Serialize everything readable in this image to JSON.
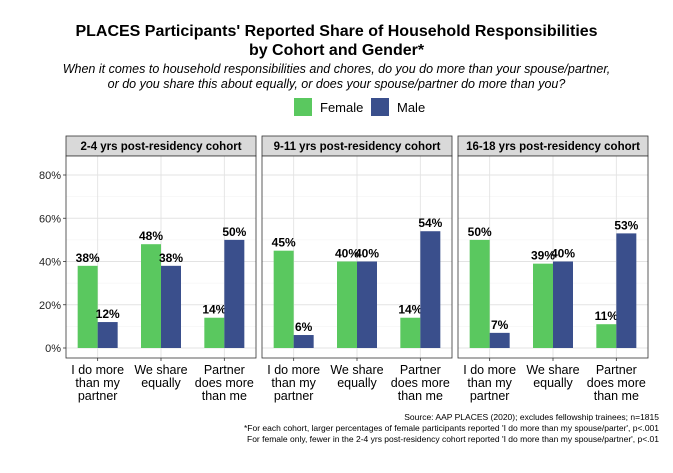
{
  "title_line1": "PLACES Participants' Reported Share of Household Responsibilities",
  "title_line2": "by Cohort and Gender*",
  "subtitle_line1": "When it comes to household responsibilities and chores, do you do more than your spouse/partner,",
  "subtitle_line2": "or do you share this about equally, or does your spouse/partner do more than you?",
  "legend": [
    {
      "label": "Female",
      "color": "#5ac85f"
    },
    {
      "label": "Male",
      "color": "#3a4f8c"
    }
  ],
  "notes": [
    "Source: AAP PLACES (2020); excludes fellowship trainees; n=1815",
    "*For each cohort, larger percentages of female participants reported 'I do more than my spouse/parter', p<.001",
    "For female only, fewer in the 2-4 yrs post-residency cohort reported 'I do more than my spouse/partner', p<.01"
  ],
  "chart_data": {
    "type": "bar",
    "ylim": [
      0,
      90
    ],
    "yticks": [
      "0%",
      "20%",
      "40%",
      "60%",
      "80%"
    ],
    "ytick_values": [
      0,
      20,
      40,
      60,
      80
    ],
    "grid": true,
    "legend_position": "top",
    "categories": [
      [
        "I do more",
        "than my",
        "partner"
      ],
      [
        "We share",
        "equally"
      ],
      [
        "Partner",
        "does more",
        "than me"
      ]
    ],
    "panels": [
      {
        "title": "2-4 yrs post-residency cohort",
        "series": [
          {
            "name": "Female",
            "values": [
              38,
              48,
              14
            ],
            "labels": [
              "38%",
              "48%",
              "14%"
            ]
          },
          {
            "name": "Male",
            "values": [
              12,
              38,
              50
            ],
            "labels": [
              "12%",
              "38%",
              "50%"
            ]
          }
        ]
      },
      {
        "title": "9-11 yrs post-residency cohort",
        "series": [
          {
            "name": "Female",
            "values": [
              45,
              40,
              14
            ],
            "labels": [
              "45%",
              "40%",
              "14%"
            ]
          },
          {
            "name": "Male",
            "values": [
              6,
              40,
              54
            ],
            "labels": [
              "6%",
              "40%",
              "54%"
            ]
          }
        ]
      },
      {
        "title": "16-18 yrs post-residency cohort",
        "series": [
          {
            "name": "Female",
            "values": [
              50,
              39,
              11
            ],
            "labels": [
              "50%",
              "39%",
              "11%"
            ]
          },
          {
            "name": "Male",
            "values": [
              7,
              40,
              53
            ],
            "labels": [
              "7%",
              "40%",
              "53%"
            ]
          }
        ]
      }
    ]
  }
}
